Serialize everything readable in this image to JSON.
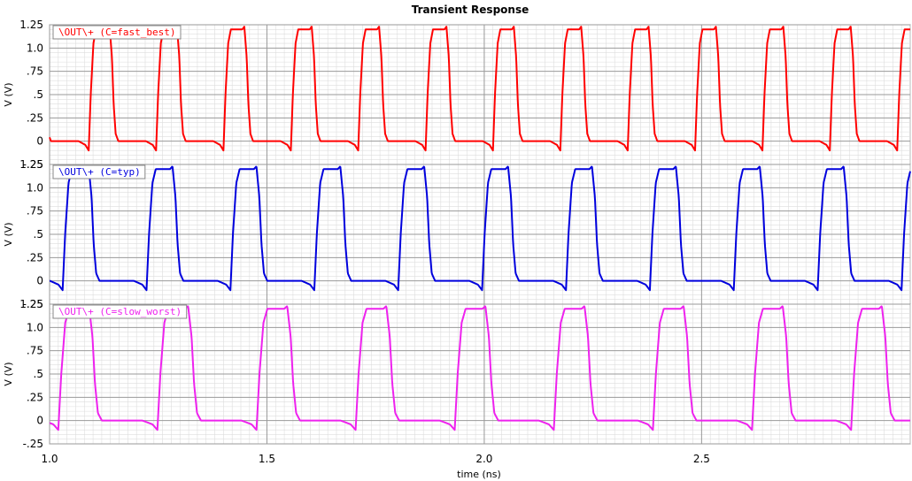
{
  "chart_data": {
    "type": "line",
    "title": "Transient Response",
    "xlabel": "time (ns)",
    "xlim": [
      1.0,
      2.98
    ],
    "x_ticks": [
      1.0,
      1.5,
      2.0,
      2.5
    ],
    "x_tick_labels": [
      "1.0",
      "1.5",
      "2.0",
      "2.5"
    ],
    "grid": true,
    "panels": [
      {
        "name": "\\OUT\\+ (C=fast_best)",
        "color": "#ff0000",
        "ylabel": "V (V)",
        "ylim": [
          -0.25,
          1.25
        ],
        "y_ticks": [
          1.25,
          1.0,
          0.75,
          0.5,
          0.25,
          0,
          -0.25
        ],
        "y_tick_labels": [
          "1.25",
          "1.0",
          ".75",
          ".5",
          ".25",
          "0",
          "-.25"
        ],
        "period_ns": 0.155,
        "first_rise_ns": 1.09,
        "high_v": 1.2,
        "low_v": 0.0,
        "undershoot_v": -0.1
      },
      {
        "name": "\\OUT\\+ (C=typ)",
        "color": "#0000dd",
        "ylabel": "V (V)",
        "ylim": [
          -0.25,
          1.25
        ],
        "y_ticks": [
          1.25,
          1.0,
          0.75,
          0.5,
          0.25,
          0,
          -0.25
        ],
        "y_tick_labels": [
          "1.25",
          "1.0",
          ".75",
          ".5",
          ".25",
          "0",
          "-.25"
        ],
        "period_ns": 0.193,
        "first_rise_ns": 1.03,
        "high_v": 1.2,
        "low_v": 0.0,
        "undershoot_v": -0.1
      },
      {
        "name": "\\OUT\\+ (C=slow_worst)",
        "color": "#ee22ee",
        "ylabel": "V (V)",
        "ylim": [
          -0.25,
          1.25
        ],
        "y_ticks": [
          1.25,
          1.0,
          0.75,
          0.5,
          0.25,
          0,
          -0.25
        ],
        "y_tick_labels": [
          "1.25",
          "1.0",
          ".75",
          ".5",
          ".25",
          "0",
          "-.25"
        ],
        "period_ns": 0.228,
        "first_rise_ns": 1.02,
        "high_v": 1.2,
        "low_v": 0.0,
        "undershoot_v": -0.1
      }
    ]
  }
}
